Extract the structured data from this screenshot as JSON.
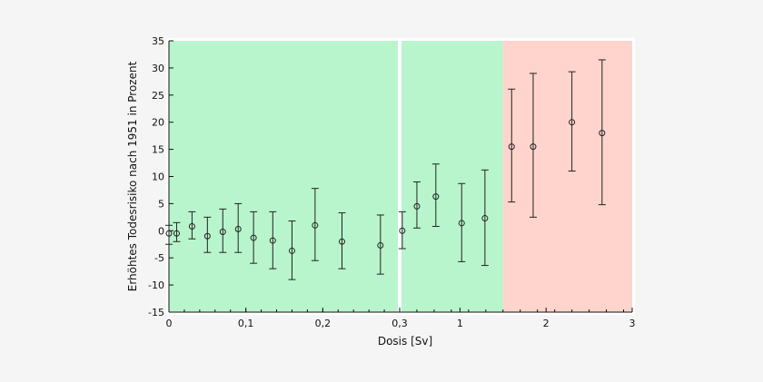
{
  "chart_data": {
    "type": "scatter",
    "title": "",
    "xlabel": "Dosis [Sv]",
    "ylabel": "Erhöhtes Todesrisiko nach 1951 in Prozent",
    "ylim": [
      -15,
      35
    ],
    "y_ticks": [
      35,
      30,
      25,
      20,
      15,
      10,
      5,
      0,
      -5,
      -10,
      -15
    ],
    "x_axis": "segmented",
    "x_segments": [
      {
        "range": [
          0,
          0.3
        ],
        "tick_values": [
          0,
          0.1,
          0.2,
          0.3
        ],
        "tick_labels": [
          "0",
          "0,1",
          "0,2",
          "0,3"
        ],
        "background_color": "#b8f5cc"
      },
      {
        "range": [
          0.3,
          3
        ],
        "tick_values": [
          1,
          2,
          3
        ],
        "tick_labels": [
          "1",
          "2",
          "3"
        ],
        "background_color": "#b8f5cc"
      }
    ],
    "shaded_regions": [
      {
        "x_range": [
          0,
          1.5
        ],
        "color": "#b8f5cc"
      },
      {
        "x_range": [
          1.5,
          3
        ],
        "color": "#ffd4cc"
      }
    ],
    "x_break_at": 0.3,
    "points": [
      {
        "x": 0.0,
        "y": -0.5,
        "err_low": -2.5,
        "err_high": 1.0
      },
      {
        "x": 0.01,
        "y": -0.5,
        "err_low": -2.0,
        "err_high": 1.5
      },
      {
        "x": 0.03,
        "y": 0.8,
        "err_low": -1.5,
        "err_high": 3.5
      },
      {
        "x": 0.05,
        "y": -1.0,
        "err_low": -4.0,
        "err_high": 2.5
      },
      {
        "x": 0.07,
        "y": -0.2,
        "err_low": -4.0,
        "err_high": 4.0
      },
      {
        "x": 0.09,
        "y": 0.3,
        "err_low": -4.0,
        "err_high": 5.0
      },
      {
        "x": 0.11,
        "y": -1.3,
        "err_low": -6.0,
        "err_high": 3.5
      },
      {
        "x": 0.135,
        "y": -1.8,
        "err_low": -7.0,
        "err_high": 3.5
      },
      {
        "x": 0.16,
        "y": -3.7,
        "err_low": -9.0,
        "err_high": 1.8
      },
      {
        "x": 0.19,
        "y": 1.0,
        "err_low": -5.5,
        "err_high": 7.8
      },
      {
        "x": 0.225,
        "y": -2.0,
        "err_low": -7.0,
        "err_high": 3.3
      },
      {
        "x": 0.275,
        "y": -2.7,
        "err_low": -8.0,
        "err_high": 2.9
      },
      {
        "x": 0.33,
        "y": 0.0,
        "err_low": -3.3,
        "err_high": 3.5
      },
      {
        "x": 0.5,
        "y": 4.5,
        "err_low": 0.5,
        "err_high": 9.0
      },
      {
        "x": 0.72,
        "y": 6.3,
        "err_low": 0.8,
        "err_high": 12.3
      },
      {
        "x": 1.02,
        "y": 1.4,
        "err_low": -5.7,
        "err_high": 8.7
      },
      {
        "x": 1.29,
        "y": 2.3,
        "err_low": -6.4,
        "err_high": 11.2
      },
      {
        "x": 1.6,
        "y": 15.5,
        "err_low": 5.3,
        "err_high": 26.1
      },
      {
        "x": 1.85,
        "y": 15.5,
        "err_low": 2.5,
        "err_high": 29.0
      },
      {
        "x": 2.3,
        "y": 20.0,
        "err_low": 11.0,
        "err_high": 29.3
      },
      {
        "x": 2.65,
        "y": 18.0,
        "err_low": 4.8,
        "err_high": 31.5
      }
    ],
    "grid": false,
    "legend": "none",
    "frame_color": "#ffffff",
    "axis_color": "#111111",
    "marker_color": "#222222"
  }
}
